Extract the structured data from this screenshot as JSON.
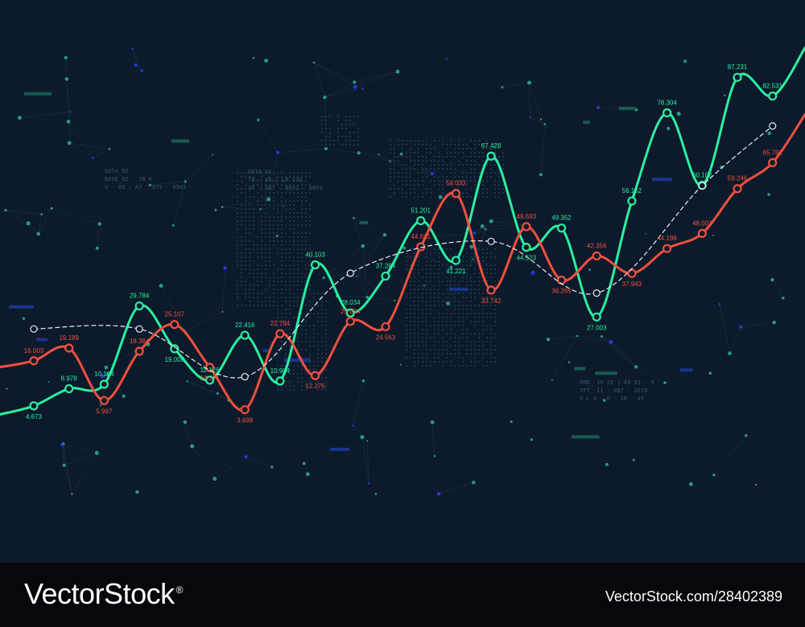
{
  "chart_data": {
    "type": "line",
    "title": "",
    "xlabel": "",
    "ylabel": "",
    "ylim": [
      0,
      100
    ],
    "grid": false,
    "x": [
      1,
      2,
      3,
      4,
      5,
      6,
      7,
      8,
      9,
      10,
      11,
      12,
      13,
      14,
      15,
      16,
      17,
      18,
      19,
      20,
      21,
      22
    ],
    "series": [
      {
        "color": "#2af0a0",
        "style": "solid",
        "values": [
          4.673,
          8.978,
          10.104,
          29.784,
          19.008,
          11.126,
          22.416,
          10.904,
          40.103,
          28.034,
          37.284,
          51.201,
          41.221,
          67.428,
          44.523,
          49.352,
          27.003,
          56.152,
          78.304,
          60.102,
          87.231,
          82.531
        ],
        "labels": [
          "4.673",
          "8.978",
          "10.104",
          "29.784",
          "19.008",
          "11.126",
          "22.416",
          "10.904",
          "40.103",
          "28.034",
          "37.284",
          "51.201",
          "41.221",
          "67.428",
          "44.523",
          "49.352",
          "27.003",
          "56.152",
          "78.304",
          "60.102",
          "87.231",
          "82.531"
        ]
      },
      {
        "color": "#f0503e",
        "style": "solid",
        "values": [
          16.003,
          19.189,
          5.997,
          18.384,
          25.107,
          14.371,
          3.698,
          22.794,
          12.275,
          25.894,
          24.563,
          44.621,
          58.033,
          33.742,
          49.693,
          36.265,
          42.356,
          37.943,
          44.198,
          48.003,
          59.246,
          65.781
        ],
        "labels": [
          "16.003",
          "19.189",
          "5.997",
          "18.384",
          "25.107",
          "14.371",
          "3.698",
          "22.794",
          "12.275",
          "25.894",
          "24.563",
          "44.621",
          "58.033",
          "33.742",
          "49.693",
          "36.265",
          "42.356",
          "37.943",
          "44.198",
          "48.003",
          "59.246",
          "65.781"
        ]
      },
      {
        "color": "#e8eef4",
        "style": "dashed",
        "values": [
          24.0,
          24.0,
          12.0,
          38.0,
          46.0,
          33.0,
          60.0,
          75.0
        ],
        "x": [
          1,
          4,
          7,
          10,
          14,
          17,
          20,
          22
        ]
      }
    ],
    "hud_text": [
      "DATA_02",
      "78 - 89 | LP 176",
      "34 - 567 - 8932 - 9054",
      "DATA_02",
      "BASE_02 - 78 K",
      "U - 09 - A7 - 675 - 8943",
      "PRD_ 10 32 | 45 33 - 8",
      "TFT_ 11 - 887 - 2019",
      "H L 4 - 0 - 18 - 45"
    ]
  },
  "footer": {
    "brand": "VectorStock",
    "registered": "®",
    "stock_id": "VectorStock.com/28402389"
  }
}
